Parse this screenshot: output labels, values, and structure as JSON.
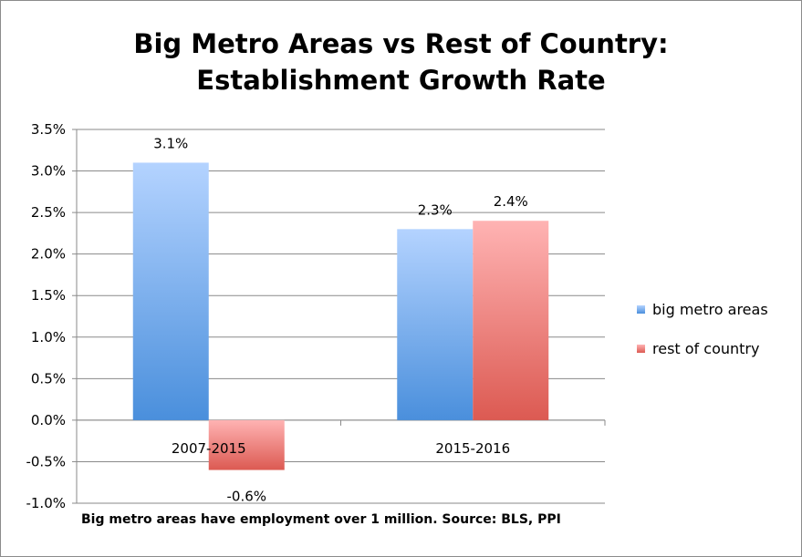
{
  "chart_data": {
    "type": "bar",
    "title_lines": [
      "Big Metro Areas vs Rest of Country:",
      "Establishment Growth Rate"
    ],
    "categories": [
      "2007-2015",
      "2015-2016"
    ],
    "series": [
      {
        "name": "big metro areas",
        "values": [
          3.1,
          2.3
        ],
        "labels": [
          "3.1%",
          "2.3%"
        ],
        "color_top": "#b4d3ff",
        "color_bottom": "#4a8fdc"
      },
      {
        "name": "rest of country",
        "values": [
          -0.6,
          2.4
        ],
        "labels": [
          "-0.6%",
          "2.4%"
        ],
        "color_top": "#ffb3b3",
        "color_bottom": "#dc5a52"
      }
    ],
    "ylim": [
      -1.0,
      3.5
    ],
    "yticks": [
      "-1.0%",
      "-0.5%",
      "0.0%",
      "0.5%",
      "1.0%",
      "1.5%",
      "2.0%",
      "2.5%",
      "3.0%",
      "3.5%"
    ],
    "grid": true,
    "legend_position": "right",
    "footnote": "Big metro areas have employment over 1 million.  Source: BLS, PPI"
  }
}
